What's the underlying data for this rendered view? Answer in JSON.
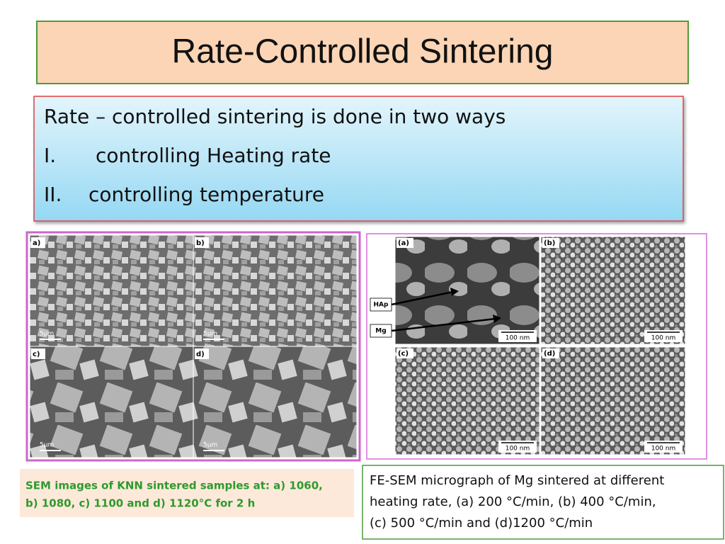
{
  "title": "Rate-Controlled Sintering",
  "intro": {
    "heading": "Rate – controlled sintering is done in two ways",
    "items": [
      {
        "marker": "I.",
        "text": "controlling Heating rate"
      },
      {
        "marker": "II.",
        "text": "controlling temperature"
      }
    ]
  },
  "figures": [
    {
      "panels": [
        {
          "label": "a)",
          "scale": "5μm"
        },
        {
          "label": "b)",
          "scale": "5μm"
        },
        {
          "label": "c)",
          "scale": "5μm"
        },
        {
          "label": "d)",
          "scale": "5μm"
        }
      ],
      "caption": [
        "SEM images of KNN sintered samples at: a) 1060,",
        "b) 1080, c) 1100 and d) 1120°C for 2 h"
      ]
    },
    {
      "panels": [
        {
          "label": "(a)",
          "scale": "100 nm"
        },
        {
          "label": "(b)",
          "scale": "100 nm"
        },
        {
          "label": "(c)",
          "scale": "100 nm"
        },
        {
          "label": "(d)",
          "scale": "100 nm"
        }
      ],
      "arrows": [
        "HAp",
        "Mg"
      ],
      "caption": [
        "FE-SEM micrograph of Mg sintered at different",
        "heating rate, (a) 200 °C/min, (b) 400 °C/min,",
        "(c) 500 °C/min and (d)1200 °C/min"
      ]
    }
  ]
}
